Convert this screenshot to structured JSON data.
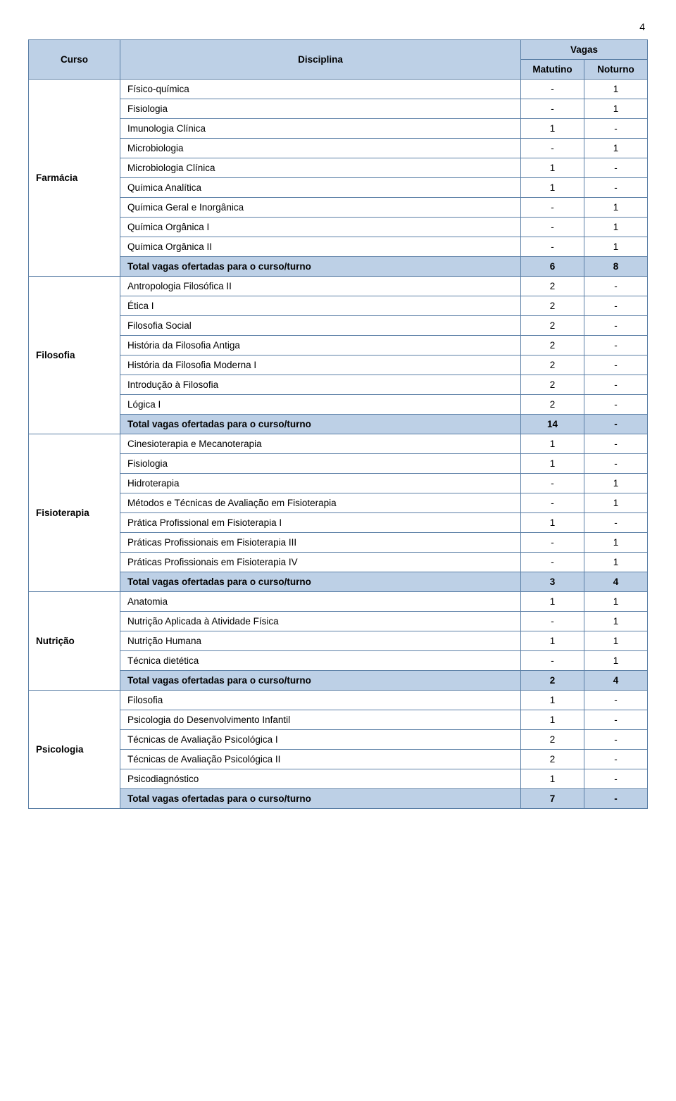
{
  "page_number": "4",
  "header": {
    "curso": "Curso",
    "disciplina": "Disciplina",
    "vagas": "Vagas",
    "matutino": "Matutino",
    "noturno": "Noturno"
  },
  "courses": [
    {
      "name": "Farmácia",
      "rows": [
        {
          "disc": "Físico-química",
          "m": "-",
          "n": "1"
        },
        {
          "disc": "Fisiologia",
          "m": "-",
          "n": "1"
        },
        {
          "disc": "Imunologia Clínica",
          "m": "1",
          "n": "-"
        },
        {
          "disc": "Microbiologia",
          "m": "-",
          "n": "1"
        },
        {
          "disc": "Microbiologia Clínica",
          "m": "1",
          "n": "-"
        },
        {
          "disc": "Química Analítica",
          "m": "1",
          "n": "-"
        },
        {
          "disc": "Química Geral e Inorgânica",
          "m": "-",
          "n": "1"
        },
        {
          "disc": "Química Orgânica I",
          "m": "-",
          "n": "1"
        },
        {
          "disc": "Química Orgânica II",
          "m": "-",
          "n": "1"
        }
      ],
      "total": {
        "label": "Total vagas ofertadas para o curso/turno",
        "m": "6",
        "n": "8"
      }
    },
    {
      "name": "Filosofia",
      "rows": [
        {
          "disc": "Antropologia Filosófica II",
          "m": "2",
          "n": "-"
        },
        {
          "disc": "Ética I",
          "m": "2",
          "n": "-"
        },
        {
          "disc": "Filosofia Social",
          "m": "2",
          "n": "-"
        },
        {
          "disc": "História da Filosofia Antiga",
          "m": "2",
          "n": "-"
        },
        {
          "disc": "História da Filosofia Moderna I",
          "m": "2",
          "n": "-"
        },
        {
          "disc": "Introdução à Filosofia",
          "m": "2",
          "n": "-"
        },
        {
          "disc": "Lógica I",
          "m": "2",
          "n": "-"
        }
      ],
      "total": {
        "label": "Total vagas ofertadas para o curso/turno",
        "m": "14",
        "n": "-"
      }
    },
    {
      "name": "Fisioterapia",
      "rows": [
        {
          "disc": "Cinesioterapia e Mecanoterapia",
          "m": "1",
          "n": "-"
        },
        {
          "disc": "Fisiologia",
          "m": "1",
          "n": "-"
        },
        {
          "disc": "Hidroterapia",
          "m": "-",
          "n": "1"
        },
        {
          "disc": "Métodos e Técnicas de Avaliação em Fisioterapia",
          "m": "-",
          "n": "1"
        },
        {
          "disc": "Prática Profissional em Fisioterapia I",
          "m": "1",
          "n": "-"
        },
        {
          "disc": "Práticas Profissionais em Fisioterapia III",
          "m": "-",
          "n": "1"
        },
        {
          "disc": "Práticas Profissionais em Fisioterapia IV",
          "m": "-",
          "n": "1"
        }
      ],
      "total": {
        "label": "Total vagas ofertadas para o curso/turno",
        "m": "3",
        "n": "4"
      }
    },
    {
      "name": "Nutrição",
      "rows": [
        {
          "disc": "Anatomia",
          "m": "1",
          "n": "1"
        },
        {
          "disc": "Nutrição Aplicada à Atividade Física",
          "m": "-",
          "n": "1"
        },
        {
          "disc": "Nutrição Humana",
          "m": "1",
          "n": "1"
        },
        {
          "disc": "Técnica dietética",
          "m": "-",
          "n": "1"
        }
      ],
      "total": {
        "label": "Total vagas ofertadas para o curso/turno",
        "m": "2",
        "n": "4"
      }
    },
    {
      "name": "Psicologia",
      "rows": [
        {
          "disc": "Filosofia",
          "m": "1",
          "n": "-"
        },
        {
          "disc": "Psicologia do Desenvolvimento Infantil",
          "m": "1",
          "n": "-"
        },
        {
          "disc": "Técnicas de Avaliação Psicológica I",
          "m": "2",
          "n": "-"
        },
        {
          "disc": "Técnicas de Avaliação Psicológica II",
          "m": "2",
          "n": "-"
        },
        {
          "disc": "Psicodiagnóstico",
          "m": "1",
          "n": "-"
        }
      ],
      "total": {
        "label": "Total vagas ofertadas para o curso/turno",
        "m": "7",
        "n": "-"
      }
    }
  ]
}
